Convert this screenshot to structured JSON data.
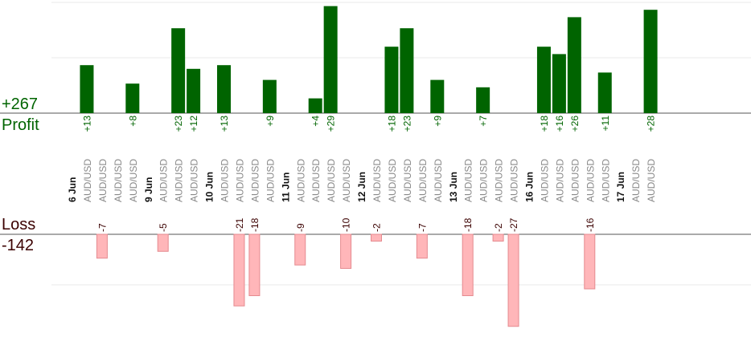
{
  "summary": {
    "profit_total": "+267",
    "profit_label": "Profit",
    "loss_label": "Loss",
    "loss_total": "-142"
  },
  "colors": {
    "profit_bar": "#006400",
    "profit_text": "#006400",
    "loss_bar": "#ffb6b9",
    "loss_bar_border": "#e58a8f",
    "loss_text": "#3b0000",
    "trade_label": "#888888",
    "date_label": "#111111",
    "grid": "#e8e8e8",
    "baseline": "#555555"
  },
  "chart_data": {
    "type": "bar",
    "title": "",
    "xlabel": "",
    "ylabel": "",
    "grid": true,
    "columns": [
      {
        "label": "6 Jun",
        "kind": "date"
      },
      {
        "label": "AUD/USD",
        "kind": "trade",
        "profit": 13,
        "profit_label": "+13"
      },
      {
        "label": "AUD/USD",
        "kind": "trade",
        "loss": -7,
        "loss_label": "-7"
      },
      {
        "label": "AUD/USD",
        "kind": "trade"
      },
      {
        "label": "AUD/USD",
        "kind": "trade",
        "profit": 8,
        "profit_label": "+8"
      },
      {
        "label": "9 Jun",
        "kind": "date"
      },
      {
        "label": "AUD/USD",
        "kind": "trade",
        "loss": -5,
        "loss_label": "-5"
      },
      {
        "label": "AUD/USD",
        "kind": "trade",
        "profit": 23,
        "profit_label": "+23"
      },
      {
        "label": "AUD/USD",
        "kind": "trade",
        "profit": 12,
        "profit_label": "+12"
      },
      {
        "label": "10 Jun",
        "kind": "date"
      },
      {
        "label": "AUD/USD",
        "kind": "trade",
        "profit": 13,
        "profit_label": "+13"
      },
      {
        "label": "AUD/USD",
        "kind": "trade",
        "loss": -21,
        "loss_label": "-21"
      },
      {
        "label": "AUD/USD",
        "kind": "trade",
        "loss": -18,
        "loss_label": "-18"
      },
      {
        "label": "AUD/USD",
        "kind": "trade",
        "profit": 9,
        "profit_label": "+9"
      },
      {
        "label": "11 Jun",
        "kind": "date"
      },
      {
        "label": "AUD/USD",
        "kind": "trade",
        "loss": -9,
        "loss_label": "-9"
      },
      {
        "label": "AUD/USD",
        "kind": "trade",
        "profit": 4,
        "profit_label": "+4"
      },
      {
        "label": "AUD/USD",
        "kind": "trade",
        "profit": 29,
        "profit_label": "+29"
      },
      {
        "label": "AUD/USD",
        "kind": "trade",
        "loss": -10,
        "loss_label": "-10"
      },
      {
        "label": "12 Jun",
        "kind": "date"
      },
      {
        "label": "AUD/USD",
        "kind": "trade",
        "loss": -2,
        "loss_label": "-2"
      },
      {
        "label": "AUD/USD",
        "kind": "trade",
        "profit": 18,
        "profit_label": "+18"
      },
      {
        "label": "AUD/USD",
        "kind": "trade",
        "profit": 23,
        "profit_label": "+23"
      },
      {
        "label": "AUD/USD",
        "kind": "trade",
        "loss": -7,
        "loss_label": "-7"
      },
      {
        "label": "AUD/USD",
        "kind": "trade",
        "profit": 9,
        "profit_label": "+9"
      },
      {
        "label": "13 Jun",
        "kind": "date"
      },
      {
        "label": "AUD/USD",
        "kind": "trade",
        "loss": -18,
        "loss_label": "-18"
      },
      {
        "label": "AUD/USD",
        "kind": "trade",
        "profit": 7,
        "profit_label": "+7"
      },
      {
        "label": "AUD/USD",
        "kind": "trade",
        "loss": -2,
        "loss_label": "-2"
      },
      {
        "label": "AUD/USD",
        "kind": "trade",
        "loss": -27,
        "loss_label": "-27"
      },
      {
        "label": "16 Jun",
        "kind": "date"
      },
      {
        "label": "AUD/USD",
        "kind": "trade",
        "profit": 18,
        "profit_label": "+18"
      },
      {
        "label": "AUD/USD",
        "kind": "trade",
        "profit": 16,
        "profit_label": "+16"
      },
      {
        "label": "AUD/USD",
        "kind": "trade",
        "profit": 26,
        "profit_label": "+26"
      },
      {
        "label": "AUD/USD",
        "kind": "trade",
        "loss": -16,
        "loss_label": "-16"
      },
      {
        "label": "AUD/USD",
        "kind": "trade",
        "profit": 11,
        "profit_label": "+11"
      },
      {
        "label": "17 Jun",
        "kind": "date"
      },
      {
        "label": "AUD/USD",
        "kind": "trade"
      },
      {
        "label": "AUD/USD",
        "kind": "trade",
        "profit": 28,
        "profit_label": "+28"
      }
    ]
  }
}
